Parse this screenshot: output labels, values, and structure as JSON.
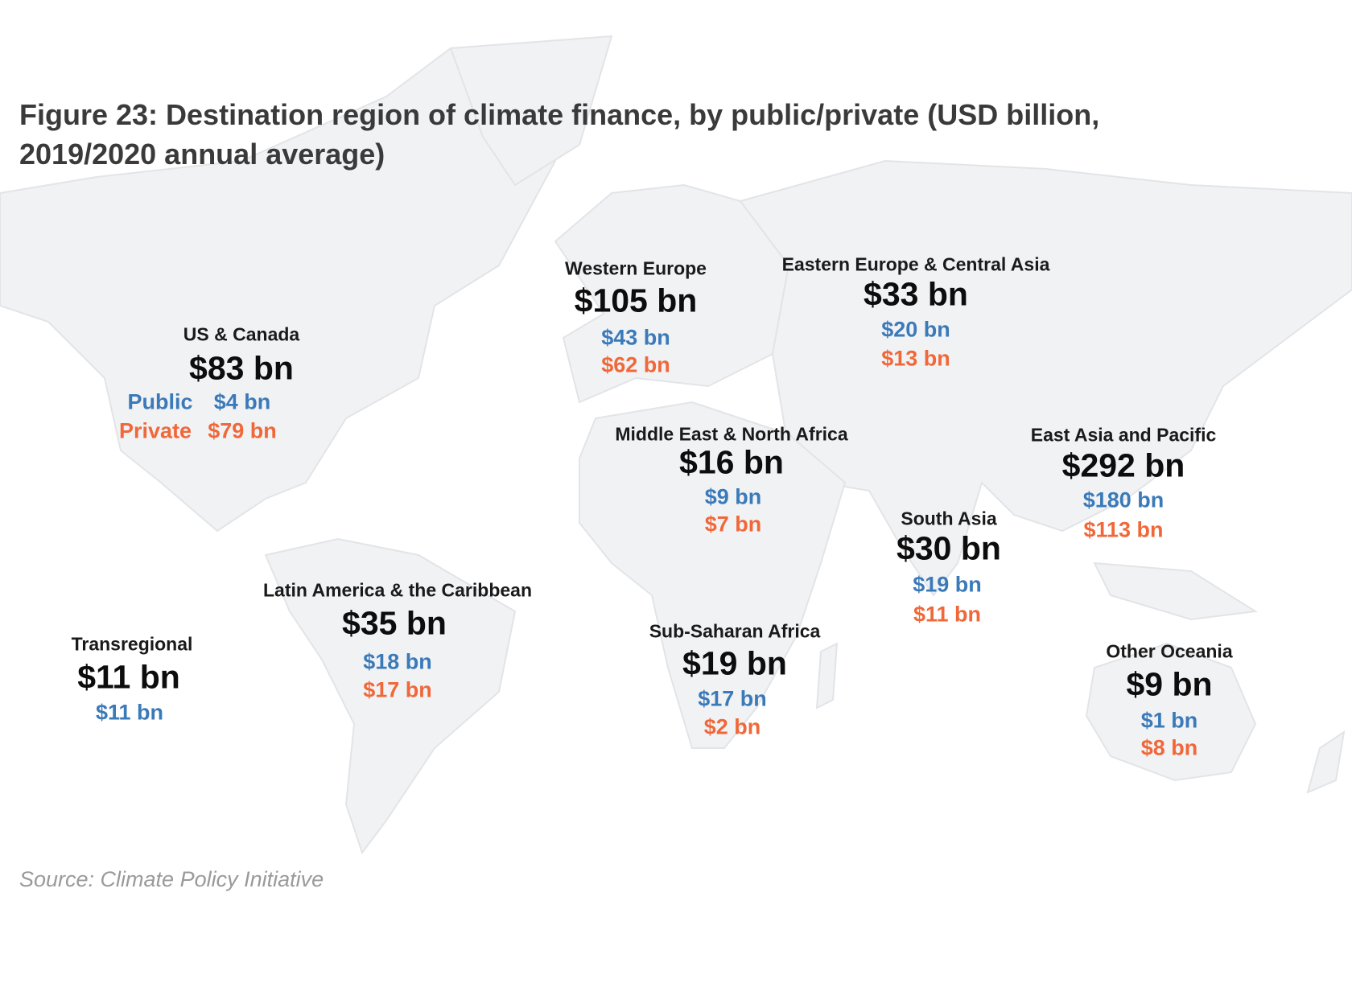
{
  "title": "Figure 23: Destination region of climate finance, by public/private (USD billion, 2019/2020 annual average)",
  "source": "Source: Climate Policy Initiative",
  "colors": {
    "public": "#3b7ab9",
    "private": "#f0683a",
    "land": "#f1f2f4"
  },
  "legend": {
    "public_label": "Public",
    "private_label": "Private"
  },
  "regions": [
    {
      "name": "US & Canada",
      "total": "$83 bn",
      "public": "$4 bn",
      "private": "$79 bn"
    },
    {
      "name": "Western Europe",
      "total": "$105 bn",
      "public": "$43 bn",
      "private": "$62 bn"
    },
    {
      "name": "Eastern Europe & Central Asia",
      "total": "$33 bn",
      "public": "$20 bn",
      "private": "$13 bn"
    },
    {
      "name": "Middle East & North Africa",
      "total": "$16 bn",
      "public": "$9 bn",
      "private": "$7 bn"
    },
    {
      "name": "East Asia and Pacific",
      "total": "$292 bn",
      "public": "$180 bn",
      "private": "$113 bn"
    },
    {
      "name": "South Asia",
      "total": "$30 bn",
      "public": "$19 bn",
      "private": "$11 bn"
    },
    {
      "name": "Latin America & the Caribbean",
      "total": "$35 bn",
      "public": "$18 bn",
      "private": "$17 bn"
    },
    {
      "name": "Sub-Saharan Africa",
      "total": "$19 bn",
      "public": "$17 bn",
      "private": "$2 bn"
    },
    {
      "name": "Transregional",
      "total": "$11 bn",
      "public": "$11 bn"
    },
    {
      "name": "Other Oceania",
      "total": "$9 bn",
      "public": "$1 bn",
      "private": "$8 bn"
    }
  ]
}
